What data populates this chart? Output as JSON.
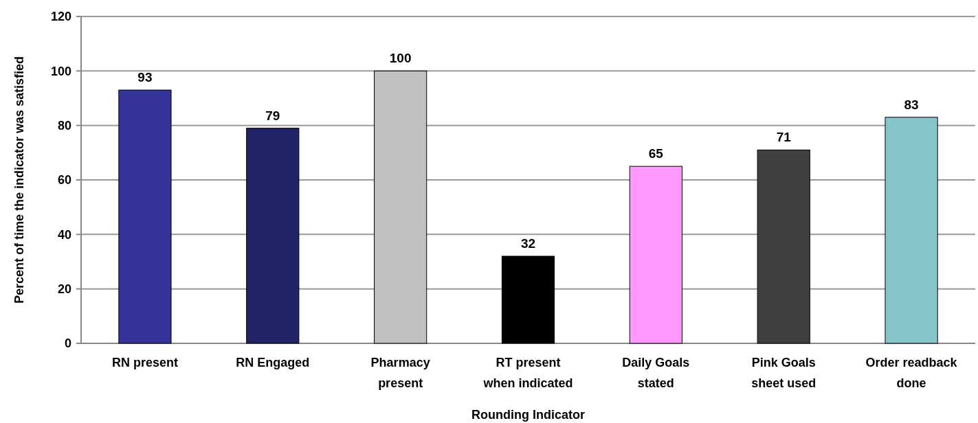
{
  "chart_data": {
    "type": "bar",
    "xlabel": "Rounding Indicator",
    "ylabel": "Percent of time the indicator was satisfied",
    "categories": [
      "RN present",
      "RN Engaged",
      "Pharmacy present",
      "RT present when indicated",
      "Daily Goals stated",
      "Pink Goals sheet used",
      "Order readback done"
    ],
    "values": [
      93,
      79,
      100,
      32,
      65,
      71,
      83
    ],
    "colors": [
      "#333399",
      "#222266",
      "#c0c0c0",
      "#000000",
      "#ff99ff",
      "#404040",
      "#87c4cc"
    ],
    "ylim": [
      0,
      120
    ],
    "yticks": [
      0,
      20,
      40,
      60,
      80,
      100,
      120
    ],
    "grid": "y",
    "data_labels": true
  }
}
